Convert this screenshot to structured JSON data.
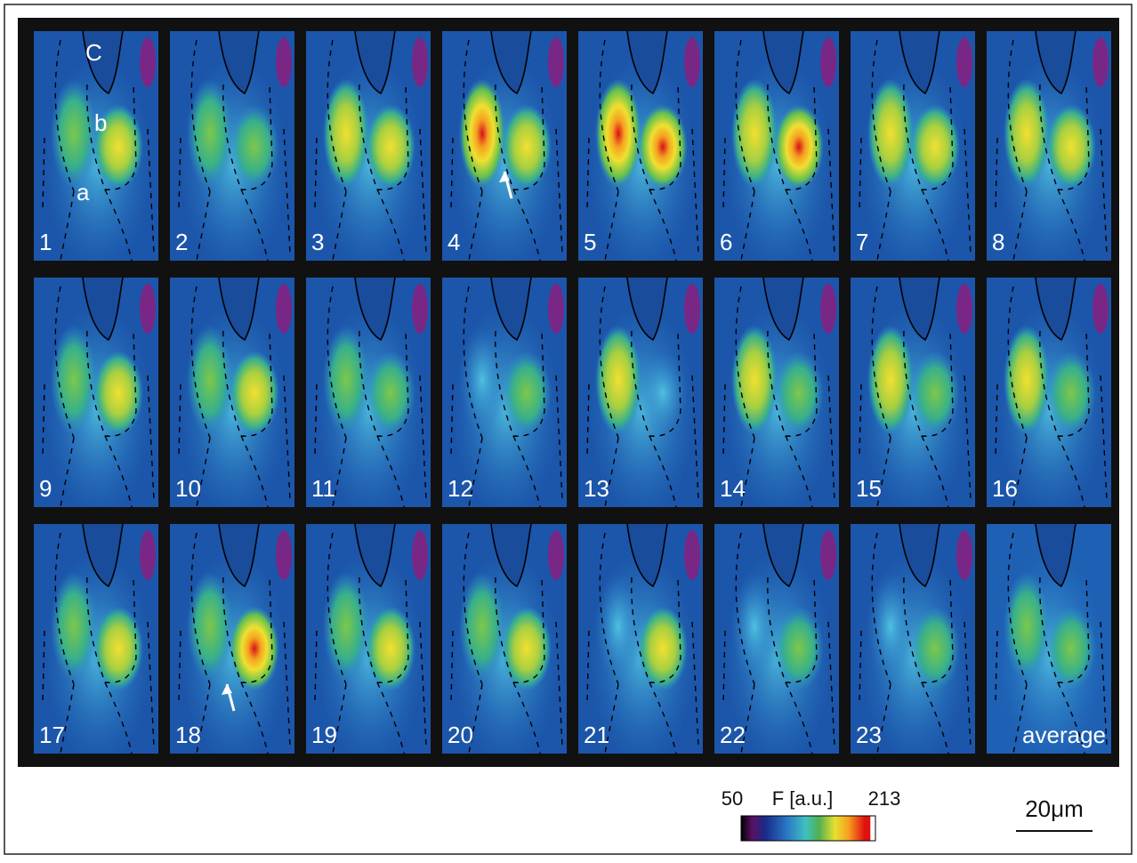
{
  "figure": {
    "panels": [
      "1",
      "2",
      "3",
      "4",
      "5",
      "6",
      "7",
      "8",
      "9",
      "10",
      "11",
      "12",
      "13",
      "14",
      "15",
      "16",
      "17",
      "18",
      "19",
      "20",
      "21",
      "22",
      "23",
      "average"
    ],
    "region_labels": [
      "C",
      "b",
      "a"
    ],
    "colorbar": {
      "min": 50,
      "label": "F [a.u.]",
      "max": 213
    },
    "scale_bar": "20μm"
  }
}
